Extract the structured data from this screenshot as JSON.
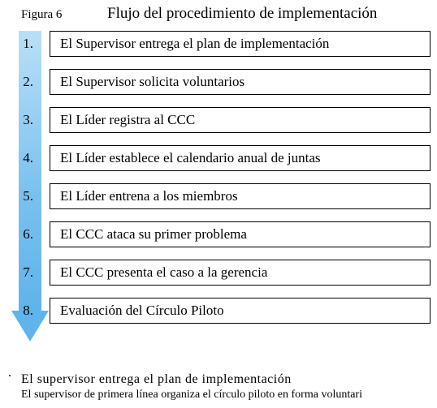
{
  "figure_label": "Figura 6",
  "figure_title": "Flujo del procedimiento de implementación",
  "arrow": {
    "gradient_start": "#b9dff7",
    "gradient_mid": "#79c0ef",
    "gradient_end": "#5fb4eb"
  },
  "steps": [
    {
      "num": "1.",
      "text": "El Supervisor entrega el plan de implementación"
    },
    {
      "num": "2.",
      "text": "El Supervisor solicita voluntarios"
    },
    {
      "num": "3.",
      "text": "El Líder registra al CCC"
    },
    {
      "num": "4.",
      "text": "El Líder establece el calendario anual de juntas"
    },
    {
      "num": "5.",
      "text": "El Líder entrena a los miembros"
    },
    {
      "num": "6.",
      "text": "El CCC ataca su primer problema"
    },
    {
      "num": "7.",
      "text": "El CCC presenta el caso a la gerencia"
    },
    {
      "num": "8.",
      "text": "Evaluación del Círculo Piloto"
    }
  ],
  "footer": {
    "num": ".",
    "title": "El supervisor entrega el plan de implementación",
    "text": "El supervisor de primera línea organiza el círculo piloto en forma voluntari"
  },
  "colors": {
    "background": "#ffffff",
    "text": "#000000",
    "box_border": "#000000"
  }
}
